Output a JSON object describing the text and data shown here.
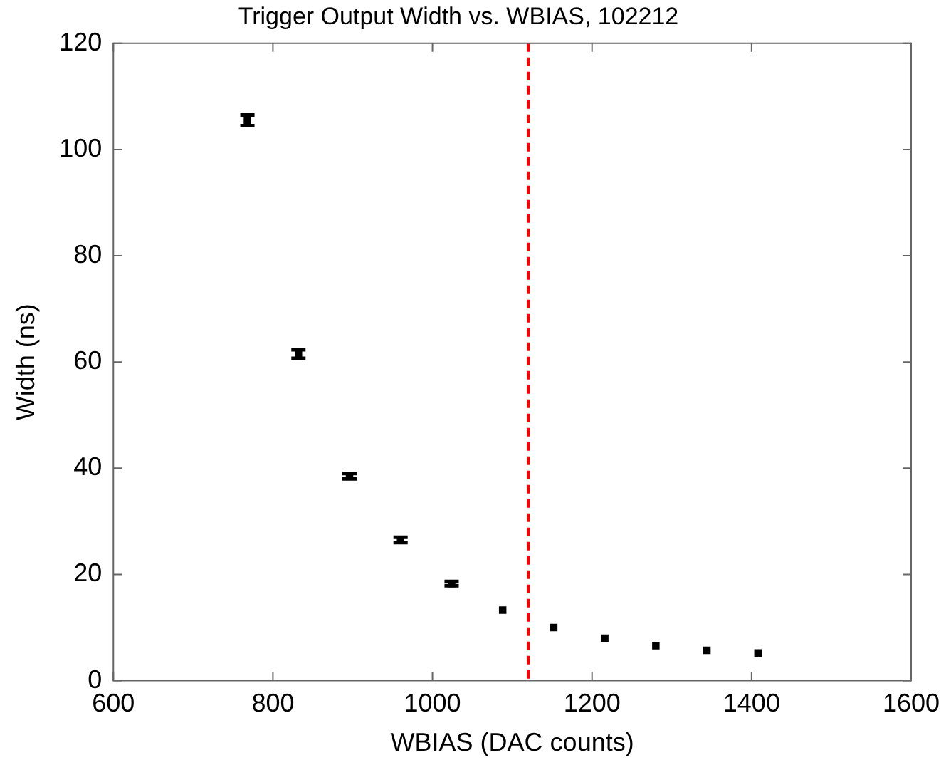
{
  "chart_data": {
    "type": "scatter",
    "title": "Trigger Output Width vs. WBIAS, 102212",
    "xlabel": "WBIAS (DAC counts)",
    "ylabel": "Width (ns)",
    "x": [
      768,
      832,
      896,
      960,
      1024,
      1088,
      1152,
      1216,
      1280,
      1344,
      1408
    ],
    "series": [
      {
        "color": "#000000",
        "values": [
          105.5,
          61.5,
          38.5,
          26.5,
          18.3,
          13.3,
          10.0,
          8.0,
          6.6,
          5.7,
          5.2
        ],
        "errors": [
          1,
          0.8,
          0.5,
          0.5,
          0.4,
          null,
          null,
          null,
          null,
          null,
          null
        ]
      }
    ],
    "xlim": [
      600,
      1600
    ],
    "xticks": [
      600,
      800,
      1000,
      1200,
      1400,
      1600
    ],
    "ylim": [
      0,
      120
    ],
    "yticks": [
      0,
      20,
      40,
      60,
      80,
      100,
      120
    ],
    "ref_lines": [
      {
        "axis": "x",
        "value": 1120,
        "color": "#ff0000",
        "line_style": "dashed"
      }
    ],
    "marker": "square",
    "grid": false,
    "legend": false
  }
}
